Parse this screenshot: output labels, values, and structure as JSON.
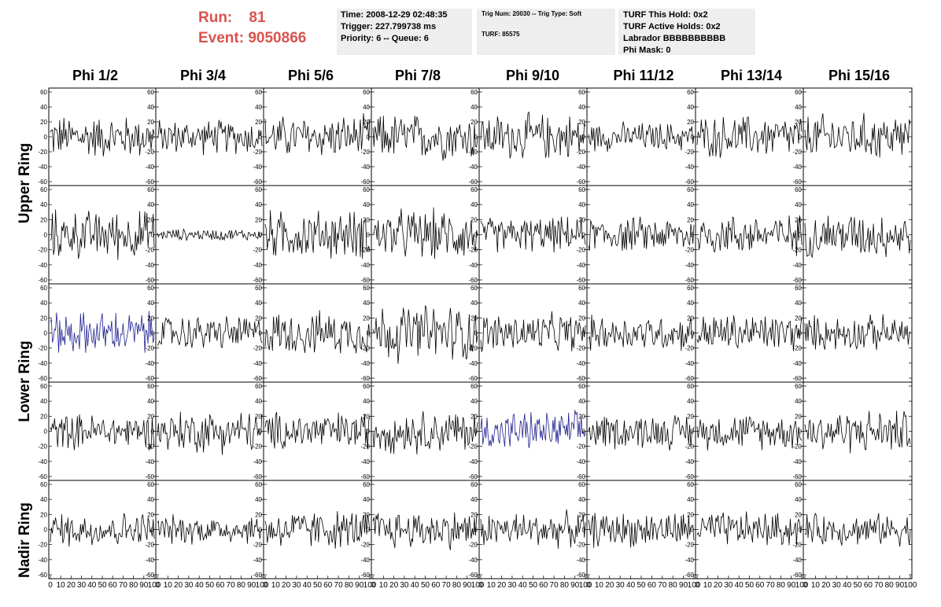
{
  "header": {
    "run_label": "Run:",
    "run_value": "81",
    "event_label": "Event:",
    "event_value": "9050866"
  },
  "info_boxes": [
    {
      "lines": [
        "Time: 2008-12-29 02:48:35",
        "Trigger: 227.799738 ms",
        "Priority: 6 -- Queue: 6"
      ]
    },
    {
      "lines": [
        "Trig Num: 20030 -- Trig Type: Soft",
        "",
        "TURF: 85575"
      ]
    },
    {
      "lines": [
        "TURF This Hold: 0x2",
        "TURF Active Holds: 0x2",
        "Labrador BBBBBBBBBB",
        "Phi Mask: 0"
      ]
    }
  ],
  "columns": [
    "Phi 1/2",
    "Phi 3/4",
    "Phi 5/6",
    "Phi 7/8",
    "Phi 9/10",
    "Phi 11/12",
    "Phi 13/14",
    "Phi 15/16"
  ],
  "rings": [
    "Upper Ring",
    "Lower Ring",
    "Nadir Ring"
  ],
  "colors": {
    "trace": "#000000",
    "highlight": "#1f1f8f",
    "header_red": "#d9534f",
    "info_bg": "#eeeeee"
  },
  "chart_data": {
    "type": "line",
    "description_rows": 5,
    "description_cols": 8,
    "xlim": [
      0,
      100
    ],
    "ylim": [
      -60,
      60
    ],
    "x_ticks": [
      0,
      10,
      20,
      30,
      40,
      50,
      60,
      70,
      80,
      90,
      100
    ],
    "y_ticks": [
      -60,
      -40,
      -20,
      0,
      20,
      40,
      60
    ],
    "samples_per_trace": 100,
    "amplitudes": [
      [
        22,
        18,
        22,
        24,
        24,
        15,
        22,
        24
      ],
      [
        25,
        6,
        25,
        26,
        18,
        18,
        21,
        23
      ],
      [
        22,
        18,
        22,
        30,
        20,
        18,
        20,
        18
      ],
      [
        18,
        22,
        20,
        22,
        20,
        18,
        18,
        22
      ],
      [
        18,
        15,
        20,
        20,
        18,
        18,
        18,
        16
      ]
    ],
    "highlighted": [
      [
        2,
        0
      ],
      [
        3,
        4
      ]
    ]
  }
}
